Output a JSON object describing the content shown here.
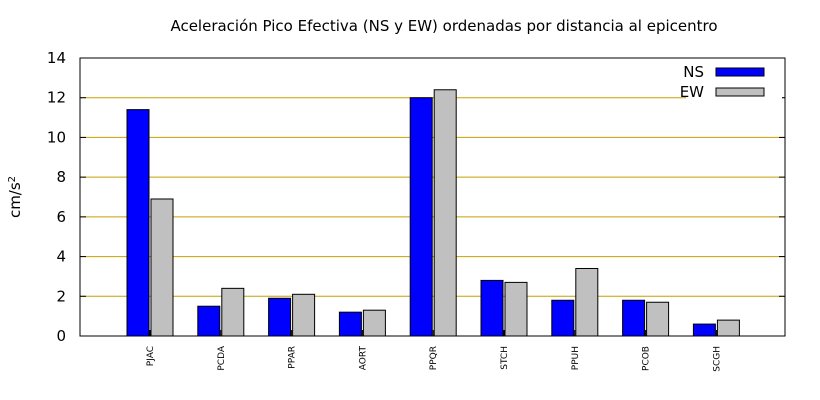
{
  "chart_data": {
    "type": "bar",
    "title": "Aceleración Pico Efectiva (NS y EW) ordenadas por distancia al epicentro",
    "xlabel": "",
    "ylabel": "cm/s",
    "ylabel_superscript": "2",
    "ylim": [
      0,
      14
    ],
    "yticks": [
      0,
      2,
      4,
      6,
      8,
      10,
      12,
      14
    ],
    "grid": true,
    "legend_position": "top-right",
    "categories": [
      "PJAC",
      "PCDA",
      "PPAR",
      "AORT",
      "PPQR",
      "STCH",
      "PPUH",
      "PCOB",
      "SCGH"
    ],
    "series": [
      {
        "name": "NS",
        "color": "#0000ff",
        "values": [
          11.4,
          1.5,
          1.9,
          1.2,
          12.0,
          2.8,
          1.8,
          1.8,
          0.6
        ]
      },
      {
        "name": "EW",
        "color": "#c0c0c0",
        "values": [
          6.9,
          2.4,
          2.1,
          1.3,
          12.4,
          2.7,
          3.4,
          1.7,
          0.8
        ]
      }
    ],
    "grid_color": "#c8a000"
  }
}
